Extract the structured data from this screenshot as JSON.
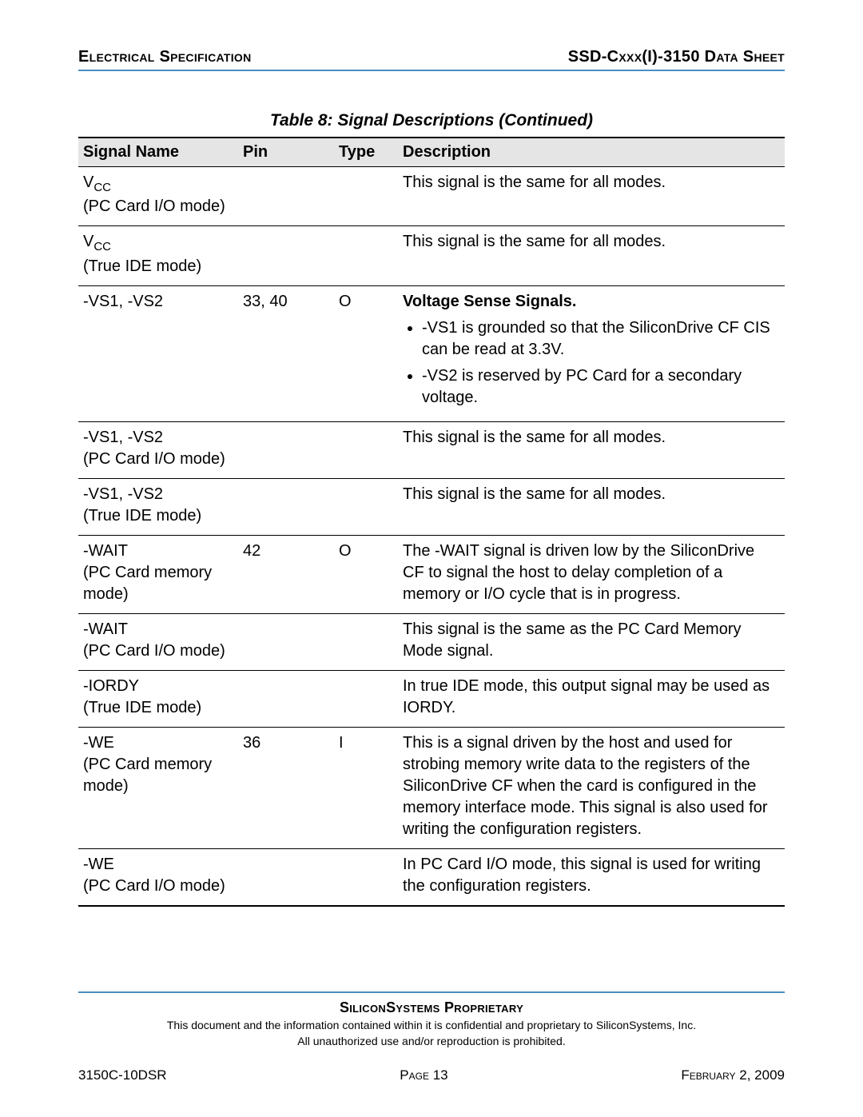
{
  "header": {
    "left": "Electrical Specification",
    "right": "SSD-Cxxx(I)-3150 Data Sheet"
  },
  "table": {
    "title": "Table 8:  Signal Descriptions  (Continued)",
    "columns": [
      "Signal Name",
      "Pin",
      "Type",
      "Description"
    ],
    "rows": [
      {
        "signal_main": "V",
        "signal_sub": "CC",
        "signal_mode": "(PC Card I/O mode)",
        "pin": "",
        "type": "",
        "desc_lead": "",
        "desc_text": "This signal is the same for all modes.",
        "bullets": []
      },
      {
        "signal_main": "V",
        "signal_sub": "CC",
        "signal_mode": "(True IDE mode)",
        "pin": "",
        "type": "",
        "desc_lead": "",
        "desc_text": "This signal is the same for all modes.",
        "bullets": []
      },
      {
        "signal_main": "-VS1, -VS2",
        "signal_sub": "",
        "signal_mode": "",
        "pin": "33, 40",
        "type": "O",
        "desc_lead": "Voltage Sense Signals.",
        "desc_text": "",
        "bullets": [
          "-VS1 is grounded so that the SiliconDrive CF CIS can be read at 3.3V.",
          "-VS2 is reserved by PC Card for a secondary voltage."
        ]
      },
      {
        "signal_main": "-VS1, -VS2",
        "signal_sub": "",
        "signal_mode": "(PC Card I/O mode)",
        "pin": "",
        "type": "",
        "desc_lead": "",
        "desc_text": "This signal is the same for all modes.",
        "bullets": []
      },
      {
        "signal_main": "-VS1, -VS2",
        "signal_sub": "",
        "signal_mode": "(True IDE mode)",
        "pin": "",
        "type": "",
        "desc_lead": "",
        "desc_text": "This signal is the same for all modes.",
        "bullets": []
      },
      {
        "signal_main": "-WAIT",
        "signal_sub": "",
        "signal_mode": "(PC Card memory mode)",
        "pin": "42",
        "type": "O",
        "desc_lead": "",
        "desc_text": "The -WAIT signal is driven low by the SiliconDrive CF to signal the host to delay completion of a memory or I/O cycle that is in progress.",
        "bullets": []
      },
      {
        "signal_main": "-WAIT",
        "signal_sub": "",
        "signal_mode": "(PC Card I/O mode)",
        "pin": "",
        "type": "",
        "desc_lead": "",
        "desc_text": "This signal is the same as the PC Card Memory Mode signal.",
        "bullets": []
      },
      {
        "signal_main": "-IORDY",
        "signal_sub": "",
        "signal_mode": "(True IDE mode)",
        "pin": "",
        "type": "",
        "desc_lead": "",
        "desc_text": "In true IDE mode, this output signal may be used as IORDY.",
        "bullets": []
      },
      {
        "signal_main": "-WE",
        "signal_sub": "",
        "signal_mode": "(PC Card memory mode)",
        "pin": "36",
        "type": "I",
        "desc_lead": "",
        "desc_text": "This is a signal driven by the host and used for strobing memory write data to the registers of the SiliconDrive CF when the card is configured in the memory interface mode. This signal is also used for writing the configuration registers.",
        "bullets": []
      },
      {
        "signal_main": "-WE",
        "signal_sub": "",
        "signal_mode": "(PC Card I/O mode)",
        "pin": "",
        "type": "",
        "desc_lead": "",
        "desc_text": "In PC Card I/O mode, this signal is used for writing the configuration registers.",
        "bullets": []
      }
    ]
  },
  "footer": {
    "proprietary": "SiliconSystems Proprietary",
    "confidential1": "This document and the information contained within it is confidential and proprietary to SiliconSystems, Inc.",
    "confidential2": "All unauthorized use and/or reproduction is prohibited.",
    "doc_id": "3150C-10DSR",
    "page": "Page 13",
    "date": "February 2, 2009"
  },
  "style": {
    "rule_color": "#4a8ec2",
    "header_bg": "#e5e5e5",
    "text_color": "#000000",
    "body_bg": "#ffffff"
  }
}
